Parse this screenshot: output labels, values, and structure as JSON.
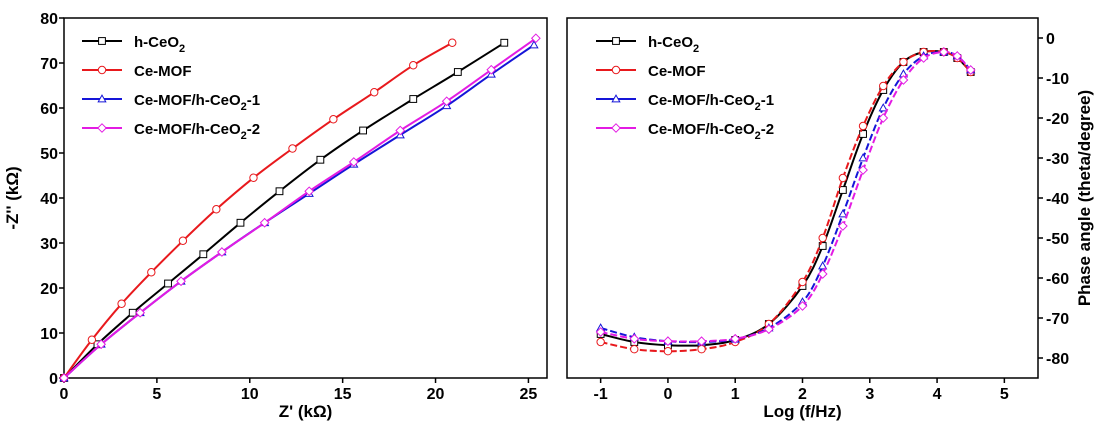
{
  "chart_data": [
    {
      "type": "line",
      "xlabel": "Z' (kΩ)",
      "ylabel": "-Z'' (kΩ)",
      "xlim": [
        0,
        26
      ],
      "ylim": [
        0,
        80
      ],
      "xticks": [
        0,
        5,
        10,
        15,
        20,
        25
      ],
      "yticks": [
        0,
        10,
        20,
        30,
        40,
        50,
        60,
        70,
        80
      ],
      "xtick_labels": [
        "0",
        "5",
        "10",
        "15",
        "20",
        "25"
      ],
      "ytick_labels": [
        "0",
        "10",
        "20",
        "30",
        "40",
        "50",
        "60",
        "70",
        "80"
      ],
      "legend_position": "top-left",
      "series": [
        {
          "name": "h-CeO2",
          "name_base": "h-CeO",
          "name_sub": "2",
          "name_suffix": "",
          "color": "#000000",
          "marker": "square",
          "x": [
            0,
            1.8,
            3.7,
            5.6,
            7.5,
            9.5,
            11.6,
            13.8,
            16.1,
            18.8,
            21.2,
            23.7
          ],
          "y": [
            0,
            7.5,
            14.5,
            21.0,
            27.5,
            34.5,
            41.5,
            48.5,
            55.0,
            62.0,
            68.0,
            74.5
          ]
        },
        {
          "name": "Ce-MOF",
          "name_base": "Ce-MOF",
          "name_sub": "",
          "name_suffix": "",
          "color": "#e8191d",
          "marker": "circle",
          "x": [
            0,
            1.5,
            3.1,
            4.7,
            6.4,
            8.2,
            10.2,
            12.3,
            14.5,
            16.7,
            18.8,
            20.9
          ],
          "y": [
            0,
            8.5,
            16.5,
            23.5,
            30.5,
            37.5,
            44.5,
            51.0,
            57.5,
            63.5,
            69.5,
            74.5
          ]
        },
        {
          "name": "Ce-MOF/h-CeO2-1",
          "name_base": "Ce-MOF/h-CeO",
          "name_sub": "2",
          "name_suffix": "-1",
          "color": "#1515d8",
          "marker": "triangle",
          "x": [
            0,
            2.0,
            4.1,
            6.3,
            8.5,
            10.8,
            13.2,
            15.6,
            18.1,
            20.6,
            23.0,
            25.3
          ],
          "y": [
            0,
            7.5,
            14.5,
            21.5,
            28.0,
            34.5,
            41.0,
            47.5,
            54.0,
            60.5,
            67.5,
            74.0
          ]
        },
        {
          "name": "Ce-MOF/h-CeO2-2",
          "name_base": "Ce-MOF/h-CeO",
          "name_sub": "2",
          "name_suffix": "-2",
          "color": "#e31be3",
          "marker": "diamond",
          "x": [
            0,
            2.0,
            4.1,
            6.3,
            8.5,
            10.8,
            13.2,
            15.6,
            18.1,
            20.6,
            23.0,
            25.4
          ],
          "y": [
            0,
            7.5,
            14.5,
            21.5,
            28.0,
            34.5,
            41.5,
            48.0,
            55.0,
            61.5,
            68.5,
            75.5
          ]
        }
      ]
    },
    {
      "type": "line",
      "xlabel": "Log (f/Hz)",
      "ylabel": "Phase angle (theta/degree)",
      "xlim": [
        -1.5,
        5.5
      ],
      "ylim": [
        -85,
        5
      ],
      "yaxis_side": "right",
      "xticks": [
        -1,
        0,
        1,
        2,
        3,
        4,
        5
      ],
      "yticks": [
        0,
        -10,
        -20,
        -30,
        -40,
        -50,
        -60,
        -70,
        -80
      ],
      "xtick_labels": [
        "-1",
        "0",
        "1",
        "2",
        "3",
        "4",
        "5"
      ],
      "ytick_labels": [
        "0",
        "-10",
        "-20",
        "-30",
        "-40",
        "-50",
        "-60",
        "-70",
        "-80"
      ],
      "legend_position": "top-left",
      "series": [
        {
          "name": "h-CeO2",
          "name_base": "h-CeO",
          "name_sub": "2",
          "name_suffix": "",
          "color": "#000000",
          "marker": "square",
          "x": [
            -1.0,
            -0.5,
            0.0,
            0.5,
            1.0,
            1.5,
            2.0,
            2.3,
            2.6,
            2.9,
            3.2,
            3.5,
            3.8,
            4.1,
            4.3,
            4.5
          ],
          "y": [
            -74,
            -76,
            -76.8,
            -76.8,
            -75.5,
            -71.5,
            -62,
            -52,
            -38,
            -24,
            -13,
            -6,
            -3.5,
            -3.5,
            -5,
            -8.5
          ]
        },
        {
          "name": "Ce-MOF",
          "name_base": "Ce-MOF",
          "name_sub": "",
          "name_suffix": "",
          "color": "#e8191d",
          "marker": "circle",
          "x": [
            -1.0,
            -0.5,
            0.0,
            0.5,
            1.0,
            1.5,
            2.0,
            2.3,
            2.6,
            2.9,
            3.2,
            3.5,
            3.8,
            4.1,
            4.3,
            4.5
          ],
          "y": [
            -76,
            -77.8,
            -78.3,
            -77.8,
            -76,
            -71.5,
            -61,
            -50,
            -35,
            -22,
            -12,
            -6,
            -3.5,
            -3.5,
            -5,
            -8.5
          ]
        },
        {
          "name": "Ce-MOF/h-CeO2-1",
          "name_base": "Ce-MOF/h-CeO",
          "name_sub": "2",
          "name_suffix": "-1",
          "color": "#1515d8",
          "marker": "triangle",
          "x": [
            -1.0,
            -0.5,
            0.0,
            0.5,
            1.0,
            1.5,
            2.0,
            2.3,
            2.6,
            2.9,
            3.2,
            3.5,
            3.8,
            4.1,
            4.3,
            4.5
          ],
          "y": [
            -72.5,
            -74.8,
            -75.8,
            -76,
            -75.3,
            -72.5,
            -66,
            -57,
            -44,
            -30,
            -17.5,
            -9,
            -4.5,
            -3.5,
            -4.5,
            -8
          ]
        },
        {
          "name": "Ce-MOF/h-CeO2-2",
          "name_base": "Ce-MOF/h-CeO",
          "name_sub": "2",
          "name_suffix": "-2",
          "color": "#e31be3",
          "marker": "diamond",
          "x": [
            -1.0,
            -0.5,
            0.0,
            0.5,
            1.0,
            1.5,
            2.0,
            2.3,
            2.6,
            2.9,
            3.2,
            3.5,
            3.8,
            4.1,
            4.3,
            4.5
          ],
          "y": [
            -73.5,
            -75.2,
            -75.8,
            -75.8,
            -75.2,
            -72.8,
            -67,
            -59,
            -47,
            -33,
            -20,
            -10.5,
            -5,
            -3.5,
            -4.5,
            -8
          ]
        }
      ]
    }
  ]
}
